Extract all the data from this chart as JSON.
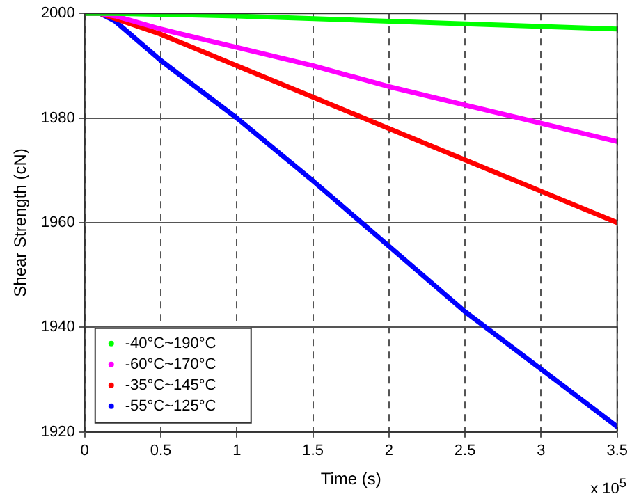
{
  "chart_data": {
    "type": "line",
    "xlabel": "Time (s)",
    "ylabel": "Shear Strength (cN)",
    "annotations": [
      "x 10$^{5}$"
    ],
    "xlim": [
      0,
      3.5
    ],
    "xticks": [
      0,
      0.5,
      1,
      1.5,
      2,
      2.5,
      3,
      3.5
    ],
    "ylim": [
      1920,
      2000
    ],
    "yticks": [
      1920,
      1940,
      1960,
      1980,
      2000
    ],
    "grid": true,
    "legend": "bottom left",
    "marker": "none",
    "line_style": "solid",
    "series": [
      {
        "name": "-40°C~190°C",
        "color": "#00ff00",
        "x": [
          0,
          0.2,
          1,
          2,
          3,
          3.5
        ],
        "values": [
          2000,
          2000,
          1999.5,
          1998.5,
          1997.5,
          1997
        ]
      },
      {
        "name": "-60°C~170°C",
        "color": "#ff00ff",
        "x": [
          0,
          0.1,
          0.2,
          0.5,
          1,
          1.5,
          2,
          2.5,
          3,
          3.5
        ],
        "values": [
          2000,
          2000,
          1999.5,
          1997,
          1993.5,
          1990,
          1986,
          1982.5,
          1979,
          1975.5
        ]
      },
      {
        "name": "-35°C~145°C",
        "color": "#ff0000",
        "x": [
          0,
          0.1,
          0.2,
          0.5,
          1,
          1.5,
          2,
          2.5,
          3,
          3.5
        ],
        "values": [
          2000,
          2000,
          1999,
          1996,
          1990,
          1984,
          1978,
          1972,
          1966,
          1960
        ]
      },
      {
        "name": "-55°C~125°C",
        "color": "#0000ff",
        "x": [
          0,
          0.1,
          0.2,
          0.5,
          1,
          1.5,
          2,
          2.5,
          3,
          3.5
        ],
        "values": [
          2000,
          2000,
          1998.5,
          1991,
          1980,
          1968,
          1955.5,
          1943,
          1932,
          1921
        ]
      }
    ]
  }
}
